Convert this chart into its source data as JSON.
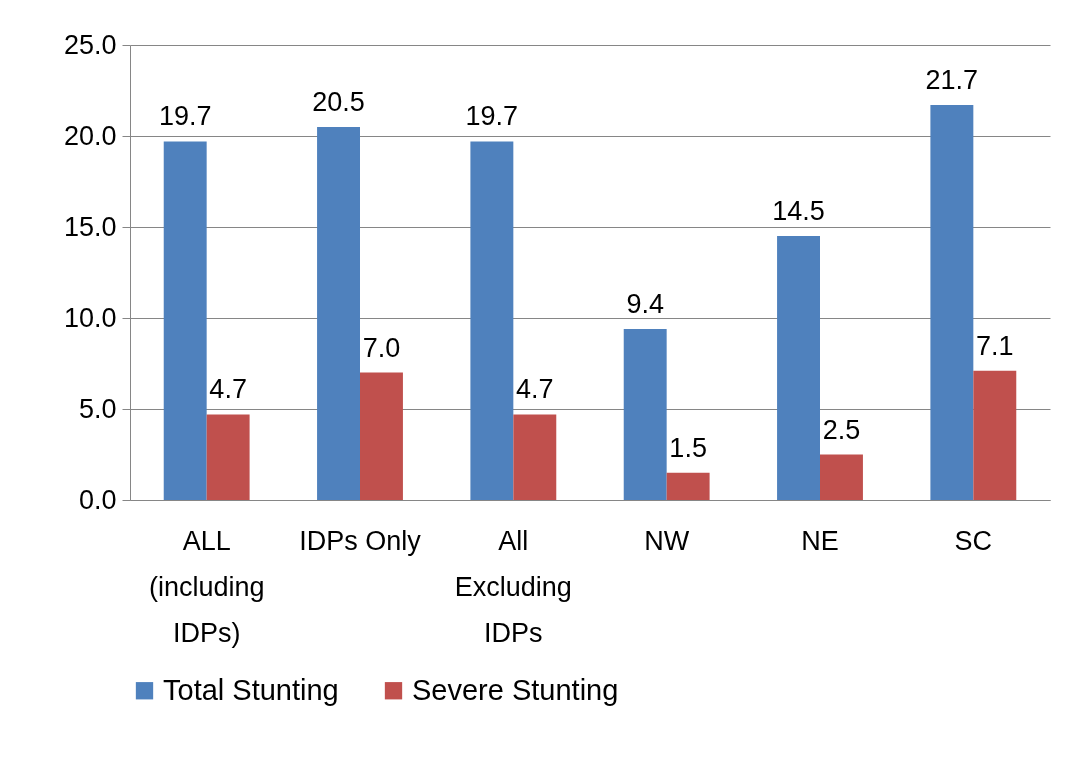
{
  "chart_data": {
    "type": "bar",
    "categories": [
      "ALL (including IDPs)",
      "IDPs Only",
      "All Excluding IDPs",
      "NW",
      "NE",
      "SC"
    ],
    "series": [
      {
        "name": "Total Stunting",
        "color": "#4f81bd",
        "values": [
          19.7,
          20.5,
          19.7,
          9.4,
          14.5,
          21.7
        ],
        "value_labels": [
          "19.7",
          "20.5",
          "19.7",
          "9.4",
          "14.5",
          "21.7"
        ]
      },
      {
        "name": "Severe Stunting",
        "color": "#c0504d",
        "values": [
          4.7,
          7.0,
          4.7,
          1.5,
          2.5,
          7.1
        ],
        "value_labels": [
          "4.7",
          "7.0",
          "4.7",
          "1.5",
          "2.5",
          "7.1"
        ]
      }
    ],
    "ylim": [
      0,
      25
    ],
    "yticks": [
      {
        "value": 0,
        "label": "0.0"
      },
      {
        "value": 5,
        "label": "5.0"
      },
      {
        "value": 10,
        "label": "10.0"
      },
      {
        "value": 15,
        "label": "15.0"
      },
      {
        "value": 20,
        "label": "20.0"
      },
      {
        "value": 25,
        "label": "25.0"
      }
    ],
    "grid": "y",
    "legend": "bottom"
  }
}
